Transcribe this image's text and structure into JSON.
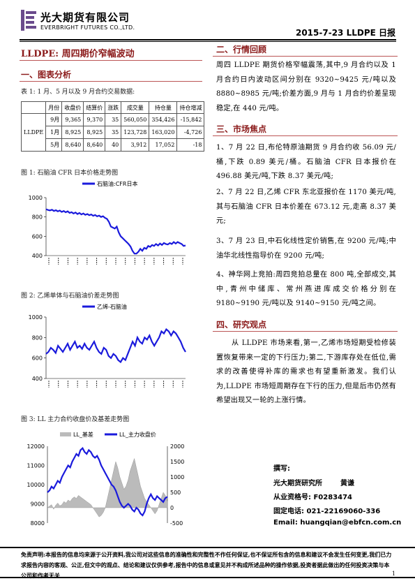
{
  "header": {
    "company_cn": "光大期货有限公司",
    "company_en": "EVERBRIGHT FUTURES CO.,LTD.",
    "date_product": "2015-7-23   LLDPE 日报"
  },
  "main_title": "LLDPE: 周四期价窄幅波动",
  "section1": {
    "heading": "一、图表分析",
    "table_caption": "表 1: 1 月、5 月以及 9 月合约交易数据:",
    "table": {
      "headers": [
        "",
        "月份",
        "收盘价",
        "结算价",
        "涨跌",
        "成交量",
        "持仓量",
        "持仓增减"
      ],
      "product": "LLDPE",
      "rows": [
        [
          "9月",
          "9,365",
          "9,370",
          "35",
          "560,050",
          "354,426",
          "-15,842"
        ],
        [
          "1月",
          "8,925",
          "8,925",
          "35",
          "123,728",
          "163,020",
          "-4,726"
        ],
        [
          "5月",
          "8,640",
          "8,640",
          "40",
          "3,912",
          "17,052",
          "-18"
        ]
      ]
    },
    "fig1_caption": "图 1: 石脑油 CFR 日本价格走势图",
    "fig2_caption": "图 2: 乙烯单体与石脑油价差走势图",
    "fig3_caption": "图 3: LL 主力合约收盘价及基差走势图"
  },
  "section2": {
    "heading": "二、行情回顾",
    "text": "周四 LLDPE 期货价格窄幅震荡,其中,9 月合约以及 1 月合约日内波动区间分别在 9320~9425 元/吨以及 8880~8985 元/吨;价差方面,9 月与 1 月合约价差呈现稳定,在 440 元/吨。"
  },
  "section3": {
    "heading": "三、市场焦点",
    "items": [
      "1、7 月 22 日,布伦特原油期货 9 月合约收 56.09 元/桶,下跌 0.89 美元/桶。石脑油 CFR 日本报价在 496.88 美元/吨,下跌 8.37 美元/吨;",
      "2、7 月 22 日,乙烯 CFR 东北亚报价在 1170 美元/吨,其与石脑油 CFR 日本价差在 673.12 元,走高 8.37 美元;",
      "3、7 月 23 日,中石化线性定价销售,在 9200 元/吨;中油华北线性指导价在 9200 元/吨;",
      "4、神华网上竞拍:周四竞拍总量在 800 吨,全部成交,其中,青州中储库、常州燕进库成交价格分别在 9180~9190 元/吨以及 9140~9150 元/吨之间。"
    ]
  },
  "section4": {
    "heading": "四、研究观点",
    "text": "从 LLDPE 市场来看,第一,乙烯市场短期受检修装置恢复带来一定的下行压力;第二,下游库存处在低位,需求的改善使得补库的需求也有望重新激发。我们认为,LLDPE 市场短周期存在下行的压力,但是后市仍然有希望出现又一轮的上涨行情。"
  },
  "contact": {
    "author_label": "撰写:",
    "org": "光大期货研究所",
    "author": "黄谦",
    "license": "从业资格号: F0283474",
    "phone": "固定电话: 021-22169060-336",
    "email": "Email:  huangqian@ebfcn.com.cn"
  },
  "disclaimer": "免责声明:本报告的信息均来源于公开资料,我公司对这些信息的准确性和完整性不作任何保证,也不保证所包含的信息和建议不会发生任何变更,我们已力求报告内容的客观、公正,但文中的观点、结论和建议仅供参考,报告中的信息或意见并不构成所述品种的操作依据,投资者据此做出的任何投资决策与本公司和作者无关",
  "page_number": "1",
  "chart_data": [
    {
      "type": "line",
      "title": "",
      "series": [
        {
          "name": "石脑油:CFR日本",
          "color": "#1a1adc",
          "values": [
            880,
            872,
            868,
            875,
            862,
            870,
            858,
            866,
            852,
            862,
            848,
            858,
            842,
            850,
            836,
            846,
            830,
            842,
            826,
            836,
            822,
            830,
            818,
            826,
            812,
            820,
            806,
            814,
            800,
            808,
            790,
            780,
            750,
            700,
            690,
            680,
            700,
            640,
            600,
            580,
            560,
            540,
            520,
            495,
            450,
            420,
            420,
            440,
            470,
            450,
            480,
            470,
            500,
            490,
            510,
            500,
            520,
            505,
            525,
            510,
            530,
            520,
            515,
            530,
            520,
            540,
            525,
            540,
            530,
            520,
            500,
            505
          ]
        }
      ],
      "ylim": [
        400,
        1000
      ],
      "yticks": [
        400,
        600,
        800,
        1000
      ],
      "xticks_note": "rotated date labels (illegible)"
    },
    {
      "type": "line",
      "title": "",
      "series": [
        {
          "name": "乙烯-石脑油",
          "color": "#1a1adc",
          "values": [
            640,
            660,
            700,
            680,
            650,
            720,
            690,
            660,
            700,
            740,
            680,
            720,
            760,
            700,
            720,
            690,
            740,
            700,
            680,
            720,
            760,
            700,
            660,
            640,
            700,
            680,
            620,
            600,
            640,
            620,
            580,
            560,
            600,
            580,
            640,
            700,
            760,
            720,
            800,
            760,
            740,
            800,
            780,
            820,
            760,
            720,
            760,
            800,
            860,
            840,
            880,
            860,
            820,
            860,
            840,
            800,
            760,
            700,
            660
          ]
        }
      ],
      "ylim": [
        400,
        1000
      ],
      "yticks": [
        400,
        600,
        800,
        1000
      ],
      "xticks_note": "rotated date labels (illegible)"
    },
    {
      "type": "area+line",
      "title": "",
      "series": [
        {
          "name": "LL_基差",
          "axis": "right",
          "color": "#bbbbbb",
          "values": [
            0,
            50,
            100,
            -50,
            80,
            150,
            60,
            100,
            200,
            150,
            250,
            200,
            300,
            350,
            300,
            400,
            350,
            300,
            250,
            200,
            150,
            100,
            0,
            -100,
            -200,
            -300,
            -250,
            -150,
            0,
            300,
            600,
            900,
            1200,
            1500,
            1300,
            1000,
            800,
            600,
            700,
            900,
            1200,
            1400,
            1600,
            1300,
            1000,
            700,
            500,
            300,
            200,
            100,
            0,
            -100,
            -200,
            -100,
            100,
            300,
            500,
            400,
            200
          ]
        },
        {
          "name": "LL_主力收盘价",
          "axis": "left",
          "color": "#1a1adc",
          "values": [
            9600,
            9700,
            9900,
            9800,
            10000,
            10200,
            10100,
            10400,
            10600,
            10800,
            11000,
            10900,
            11200,
            11400,
            11600,
            11500,
            11800,
            11900,
            11700,
            11600,
            11800,
            11700,
            11500,
            11400,
            11500,
            11300,
            11000,
            10800,
            10600,
            10400,
            10200,
            10000,
            9900,
            9700,
            9400,
            9100,
            8900,
            8800,
            8900,
            9000,
            8900,
            8700,
            8600,
            8800,
            8700,
            8500,
            8400,
            8600,
            9000,
            9300,
            9500,
            9300,
            9200,
            9400,
            9300,
            9200,
            9100,
            9300,
            9365
          ]
        }
      ],
      "ylim_left": [
        8000,
        12000
      ],
      "yticks_left": [
        8000,
        9000,
        10000,
        11000,
        12000
      ],
      "ylim_right": [
        -500,
        2000
      ],
      "yticks_right": [
        -500,
        0,
        500,
        1000,
        1500,
        2000
      ]
    }
  ]
}
